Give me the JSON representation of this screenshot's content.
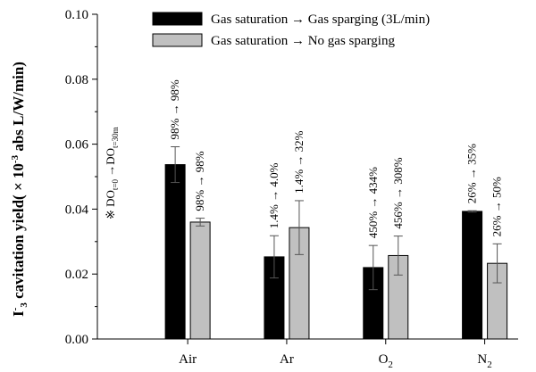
{
  "chart_data": {
    "type": "bar",
    "categories": [
      {
        "base": "Air",
        "sub": ""
      },
      {
        "base": "Ar",
        "sub": ""
      },
      {
        "base": "O",
        "sub": "2"
      },
      {
        "base": "N",
        "sub": "2"
      }
    ],
    "series": [
      {
        "name": "Gas saturation → Gas sparging (3L/min)",
        "color": "#000000",
        "values": [
          0.0537,
          0.0253,
          0.022,
          0.0393
        ],
        "errors": [
          0.0055,
          0.0065,
          0.0068,
          0.0002
        ],
        "labels": [
          "98% → 98%",
          "1.4% → 4.0%",
          "450% → 434%",
          "26% → 35%"
        ]
      },
      {
        "name": "Gas saturation → No gas sparging",
        "color": "#c0c0c0",
        "values": [
          0.036,
          0.0343,
          0.0257,
          0.0233
        ],
        "errors": [
          0.0012,
          0.0083,
          0.006,
          0.006
        ],
        "labels": [
          "98% → 98%",
          "1.4% → 32%",
          "456% → 308%",
          "26% → 50%"
        ]
      }
    ],
    "y_ticks": [
      "0.00",
      "0.02",
      "0.04",
      "0.06",
      "0.08",
      "0.10"
    ],
    "ylim": [
      0,
      0.1
    ],
    "ylabel": {
      "prefix": "I",
      "sub": "3",
      "sup": "-",
      "mid": " cavitation yield( × 10",
      "exp": "-3",
      "suffix": " abs L/W/min)"
    },
    "annotation": {
      "lead": "※ DO",
      "sub1": "t=0",
      "arrow": " →DO",
      "sub2": "t=30m"
    },
    "legend_position": "top-right",
    "grid": false
  }
}
